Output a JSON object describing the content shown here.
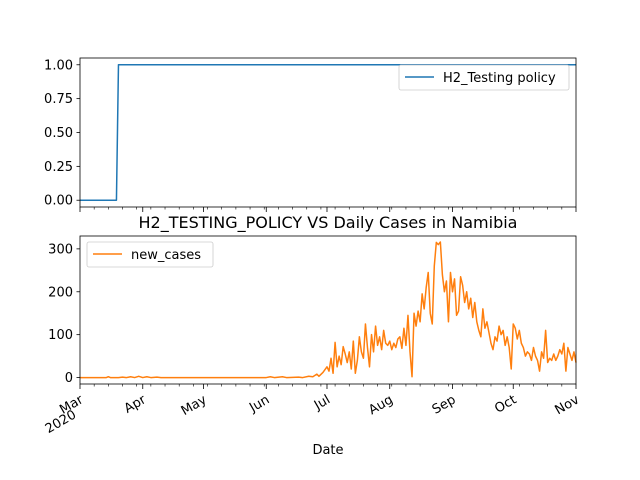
{
  "chart_data": [
    {
      "type": "line",
      "title": "",
      "xlabel": "",
      "ylabel": "",
      "ylim": [
        -0.05,
        1.05
      ],
      "y_ticks": [
        "0.00",
        "0.25",
        "0.50",
        "0.75",
        "1.00"
      ],
      "y_tick_values": [
        0,
        0.25,
        0.5,
        0.75,
        1.0
      ],
      "legend_position": "upper right",
      "series": [
        {
          "name": "H2_Testing policy",
          "color": "#1f77b4",
          "points": [
            [
              "2020-03-01",
              0
            ],
            [
              "2020-03-19",
              0
            ],
            [
              "2020-03-20",
              1
            ],
            [
              "2020-11-01",
              1
            ]
          ]
        }
      ]
    },
    {
      "type": "line",
      "title": "H2_TESTING_POLICY VS Daily Cases in Namibia",
      "xlabel": "Date",
      "ylabel": "",
      "ylim": [
        -15,
        330
      ],
      "y_ticks": [
        "0",
        "100",
        "200",
        "300"
      ],
      "y_tick_values": [
        0,
        100,
        200,
        300
      ],
      "legend_position": "upper left",
      "x_ticks": [
        {
          "date": "2020-03-01",
          "label": "Mar",
          "sublabel": "2020"
        },
        {
          "date": "2020-04-01",
          "label": "Apr"
        },
        {
          "date": "2020-05-01",
          "label": "May"
        },
        {
          "date": "2020-06-01",
          "label": "Jun"
        },
        {
          "date": "2020-07-01",
          "label": "Jul"
        },
        {
          "date": "2020-08-01",
          "label": "Aug"
        },
        {
          "date": "2020-09-01",
          "label": "Sep"
        },
        {
          "date": "2020-10-01",
          "label": "Oct"
        },
        {
          "date": "2020-11-01",
          "label": "Nov"
        }
      ],
      "series": [
        {
          "name": "new_cases",
          "color": "#ff7f0e",
          "points": [
            [
              "2020-03-01",
              0
            ],
            [
              "2020-03-14",
              0
            ],
            [
              "2020-03-15",
              2
            ],
            [
              "2020-03-16",
              0
            ],
            [
              "2020-03-20",
              0
            ],
            [
              "2020-03-22",
              1
            ],
            [
              "2020-03-24",
              0
            ],
            [
              "2020-03-26",
              2
            ],
            [
              "2020-03-28",
              0
            ],
            [
              "2020-03-30",
              3
            ],
            [
              "2020-04-01",
              0
            ],
            [
              "2020-04-03",
              2
            ],
            [
              "2020-04-05",
              0
            ],
            [
              "2020-04-08",
              1
            ],
            [
              "2020-04-10",
              0
            ],
            [
              "2020-06-01",
              0
            ],
            [
              "2020-06-03",
              2
            ],
            [
              "2020-06-05",
              0
            ],
            [
              "2020-06-09",
              2
            ],
            [
              "2020-06-11",
              0
            ],
            [
              "2020-06-17",
              1
            ],
            [
              "2020-06-19",
              0
            ],
            [
              "2020-06-22",
              3
            ],
            [
              "2020-06-24",
              2
            ],
            [
              "2020-06-26",
              8
            ],
            [
              "2020-06-27",
              3
            ],
            [
              "2020-06-29",
              12
            ],
            [
              "2020-07-01",
              25
            ],
            [
              "2020-07-02",
              15
            ],
            [
              "2020-07-03",
              45
            ],
            [
              "2020-07-04",
              10
            ],
            [
              "2020-07-05",
              82
            ],
            [
              "2020-07-06",
              25
            ],
            [
              "2020-07-07",
              50
            ],
            [
              "2020-07-08",
              30
            ],
            [
              "2020-07-09",
              72
            ],
            [
              "2020-07-10",
              55
            ],
            [
              "2020-07-11",
              35
            ],
            [
              "2020-07-12",
              60
            ],
            [
              "2020-07-13",
              20
            ],
            [
              "2020-07-14",
              85
            ],
            [
              "2020-07-15",
              10
            ],
            [
              "2020-07-16",
              40
            ],
            [
              "2020-07-17",
              95
            ],
            [
              "2020-07-18",
              60
            ],
            [
              "2020-07-19",
              45
            ],
            [
              "2020-07-20",
              125
            ],
            [
              "2020-07-21",
              70
            ],
            [
              "2020-07-22",
              25
            ],
            [
              "2020-07-23",
              100
            ],
            [
              "2020-07-24",
              60
            ],
            [
              "2020-07-25",
              120
            ],
            [
              "2020-07-26",
              75
            ],
            [
              "2020-07-27",
              95
            ],
            [
              "2020-07-28",
              65
            ],
            [
              "2020-07-29",
              110
            ],
            [
              "2020-07-30",
              80
            ],
            [
              "2020-07-31",
              75
            ],
            [
              "2020-08-01",
              85
            ],
            [
              "2020-08-02",
              65
            ],
            [
              "2020-08-03",
              80
            ],
            [
              "2020-08-04",
              70
            ],
            [
              "2020-08-05",
              90
            ],
            [
              "2020-08-06",
              95
            ],
            [
              "2020-08-07",
              68
            ],
            [
              "2020-08-08",
              115
            ],
            [
              "2020-08-09",
              75
            ],
            [
              "2020-08-10",
              145
            ],
            [
              "2020-08-11",
              60
            ],
            [
              "2020-08-12",
              2
            ],
            [
              "2020-08-13",
              150
            ],
            [
              "2020-08-14",
              120
            ],
            [
              "2020-08-15",
              155
            ],
            [
              "2020-08-16",
              130
            ],
            [
              "2020-08-17",
              195
            ],
            [
              "2020-08-18",
              160
            ],
            [
              "2020-08-19",
              210
            ],
            [
              "2020-08-20",
              245
            ],
            [
              "2020-08-21",
              150
            ],
            [
              "2020-08-22",
              125
            ],
            [
              "2020-08-23",
              260
            ],
            [
              "2020-08-24",
              315
            ],
            [
              "2020-08-25",
              310
            ],
            [
              "2020-08-26",
              316
            ],
            [
              "2020-08-27",
              240
            ],
            [
              "2020-08-28",
              200
            ],
            [
              "2020-08-29",
              225
            ],
            [
              "2020-08-30",
              130
            ],
            [
              "2020-08-31",
              245
            ],
            [
              "2020-09-01",
              200
            ],
            [
              "2020-09-02",
              230
            ],
            [
              "2020-09-03",
              145
            ],
            [
              "2020-09-04",
              155
            ],
            [
              "2020-09-05",
              235
            ],
            [
              "2020-09-06",
              215
            ],
            [
              "2020-09-07",
              175
            ],
            [
              "2020-09-08",
              200
            ],
            [
              "2020-09-09",
              160
            ],
            [
              "2020-09-10",
              185
            ],
            [
              "2020-09-11",
              140
            ],
            [
              "2020-09-12",
              175
            ],
            [
              "2020-09-13",
              130
            ],
            [
              "2020-09-14",
              110
            ],
            [
              "2020-09-15",
              95
            ],
            [
              "2020-09-16",
              160
            ],
            [
              "2020-09-17",
              115
            ],
            [
              "2020-09-18",
              130
            ],
            [
              "2020-09-19",
              105
            ],
            [
              "2020-09-20",
              80
            ],
            [
              "2020-09-21",
              65
            ],
            [
              "2020-09-22",
              95
            ],
            [
              "2020-09-23",
              85
            ],
            [
              "2020-09-24",
              120
            ],
            [
              "2020-09-25",
              100
            ],
            [
              "2020-09-26",
              110
            ],
            [
              "2020-09-27",
              75
            ],
            [
              "2020-09-28",
              95
            ],
            [
              "2020-09-29",
              70
            ],
            [
              "2020-09-30",
              20
            ],
            [
              "2020-10-01",
              125
            ],
            [
              "2020-10-02",
              115
            ],
            [
              "2020-10-03",
              90
            ],
            [
              "2020-10-04",
              110
            ],
            [
              "2020-10-05",
              80
            ],
            [
              "2020-10-06",
              70
            ],
            [
              "2020-10-07",
              50
            ],
            [
              "2020-10-08",
              60
            ],
            [
              "2020-10-09",
              55
            ],
            [
              "2020-10-10",
              40
            ],
            [
              "2020-10-11",
              70
            ],
            [
              "2020-10-12",
              50
            ],
            [
              "2020-10-13",
              40
            ],
            [
              "2020-10-14",
              15
            ],
            [
              "2020-10-15",
              60
            ],
            [
              "2020-10-16",
              45
            ],
            [
              "2020-10-17",
              110
            ],
            [
              "2020-10-18",
              35
            ],
            [
              "2020-10-19",
              45
            ],
            [
              "2020-10-20",
              40
            ],
            [
              "2020-10-21",
              55
            ],
            [
              "2020-10-22",
              40
            ],
            [
              "2020-10-23",
              50
            ],
            [
              "2020-10-24",
              65
            ],
            [
              "2020-10-25",
              55
            ],
            [
              "2020-10-26",
              80
            ],
            [
              "2020-10-27",
              15
            ],
            [
              "2020-10-28",
              70
            ],
            [
              "2020-10-29",
              55
            ],
            [
              "2020-10-30",
              40
            ],
            [
              "2020-10-31",
              60
            ],
            [
              "2020-11-01",
              35
            ]
          ]
        }
      ]
    }
  ]
}
